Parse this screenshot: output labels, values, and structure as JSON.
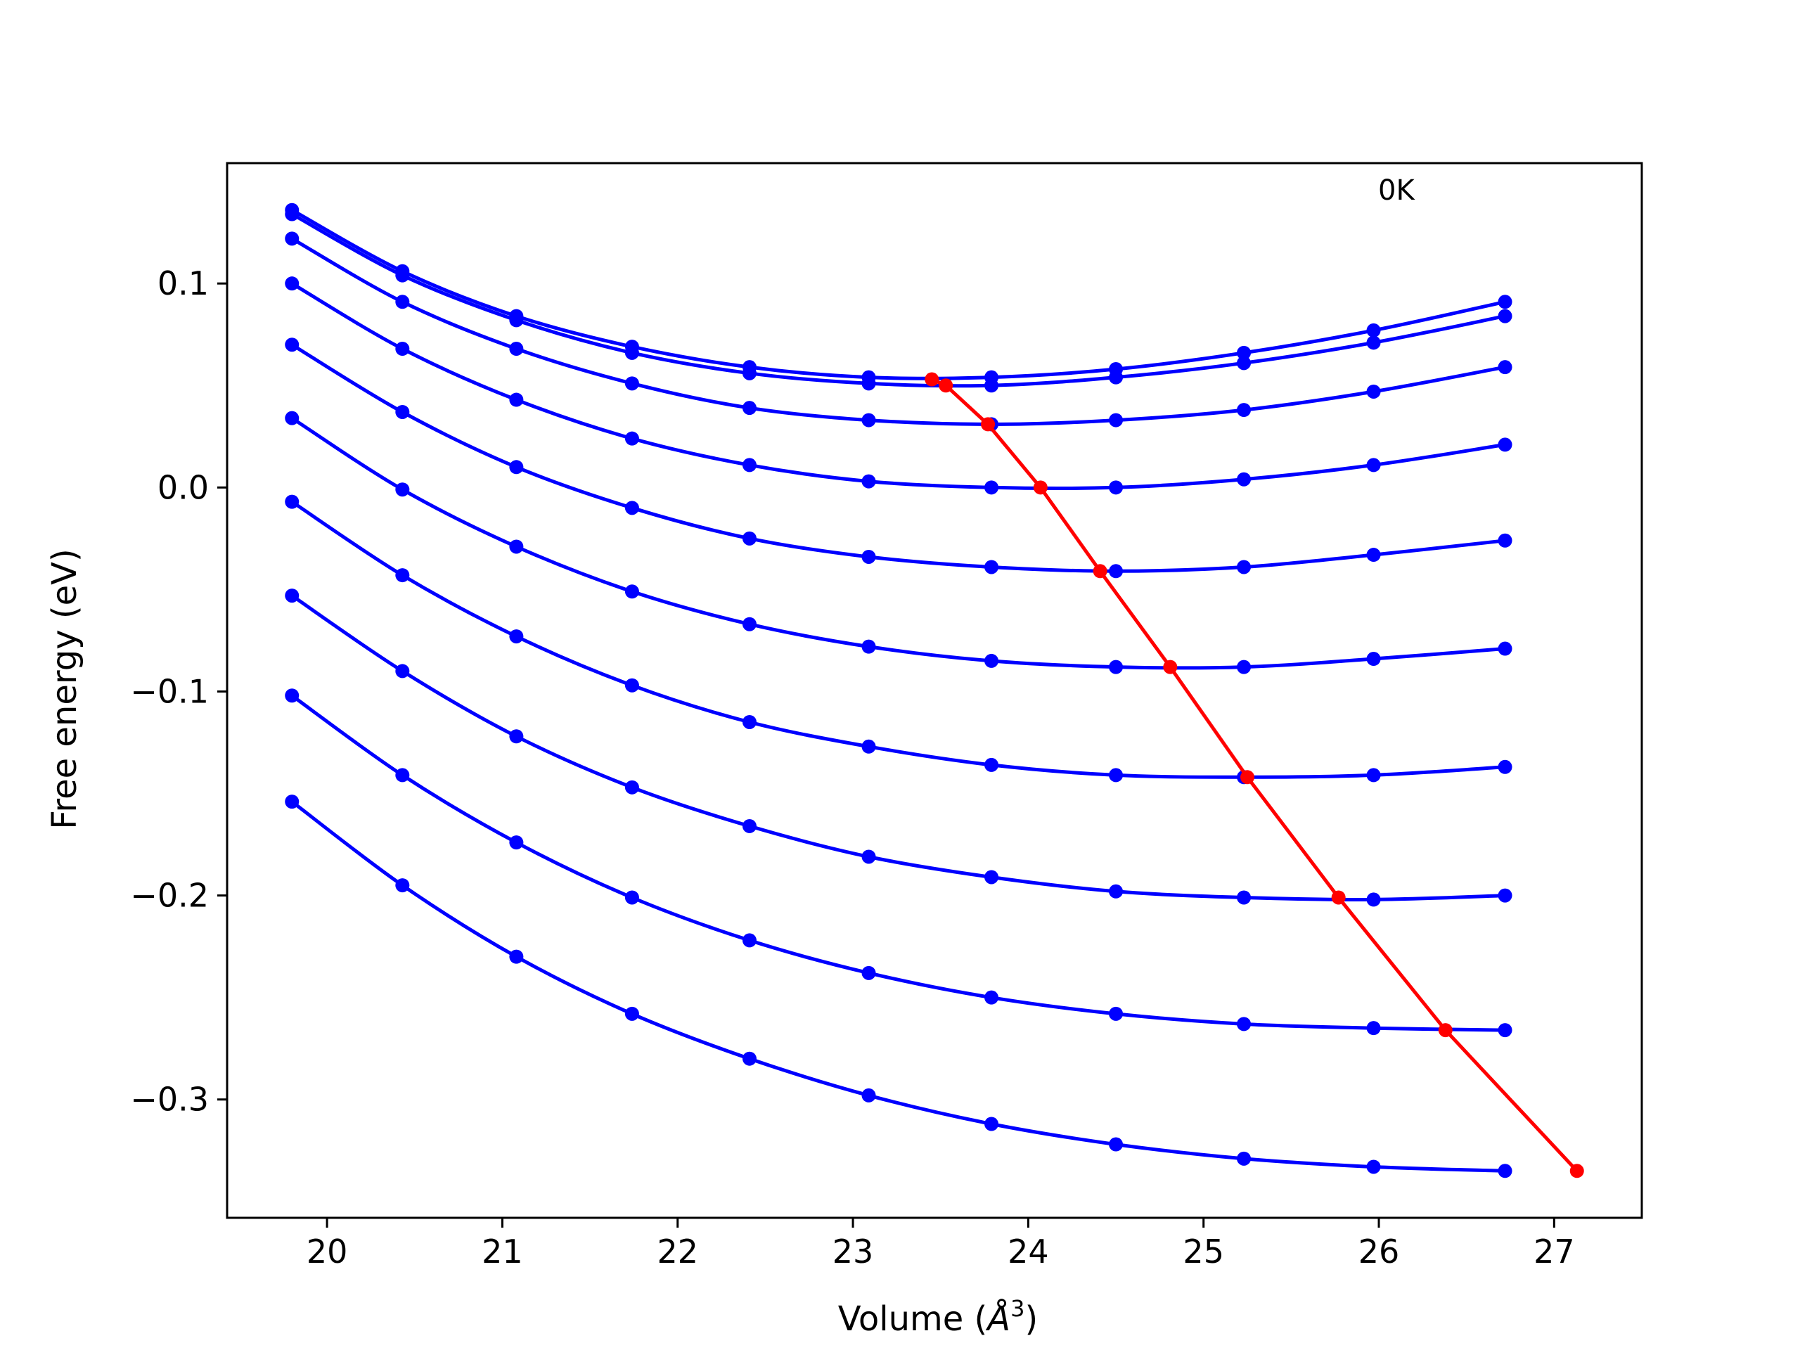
{
  "chart_data": {
    "type": "line",
    "title": "",
    "xlabel_text": "Volume (",
    "xlabel_unit": "Å",
    "xlabel_sup": "3",
    "xlabel_close": ")",
    "ylabel": "Free energy (eV)",
    "annotation": "0K",
    "xlim": [
      19.43,
      27.5
    ],
    "ylim": [
      -0.358,
      0.159
    ],
    "xticks": [
      20,
      21,
      22,
      23,
      24,
      25,
      26,
      27
    ],
    "xtick_labels": [
      "20",
      "21",
      "22",
      "23",
      "24",
      "25",
      "26",
      "27"
    ],
    "yticks": [
      -0.3,
      -0.2,
      -0.1,
      0.0,
      0.1
    ],
    "ytick_labels": [
      "−0.3",
      "−0.2",
      "−0.1",
      "0.0",
      "0.1"
    ],
    "grid": false,
    "x": [
      19.8,
      20.43,
      21.08,
      21.74,
      22.41,
      23.09,
      23.79,
      24.5,
      25.23,
      25.97,
      26.72
    ],
    "series": [
      {
        "color": "#0000ff",
        "values": [
          0.136,
          0.106,
          0.084,
          0.069,
          0.059,
          0.054,
          0.054,
          0.058,
          0.066,
          0.077,
          0.091
        ]
      },
      {
        "color": "#0000ff",
        "values": [
          0.134,
          0.104,
          0.082,
          0.066,
          0.056,
          0.051,
          0.05,
          0.054,
          0.061,
          0.071,
          0.084
        ]
      },
      {
        "color": "#0000ff",
        "values": [
          0.122,
          0.091,
          0.068,
          0.051,
          0.039,
          0.033,
          0.031,
          0.033,
          0.038,
          0.047,
          0.059
        ]
      },
      {
        "color": "#0000ff",
        "values": [
          0.1,
          0.068,
          0.043,
          0.024,
          0.011,
          0.003,
          0.0,
          0.0,
          0.004,
          0.011,
          0.021
        ]
      },
      {
        "color": "#0000ff",
        "values": [
          0.07,
          0.037,
          0.01,
          -0.01,
          -0.025,
          -0.034,
          -0.039,
          -0.041,
          -0.039,
          -0.033,
          -0.026
        ]
      },
      {
        "color": "#0000ff",
        "values": [
          0.034,
          -0.001,
          -0.029,
          -0.051,
          -0.067,
          -0.078,
          -0.085,
          -0.088,
          -0.088,
          -0.084,
          -0.079
        ]
      },
      {
        "color": "#0000ff",
        "values": [
          -0.007,
          -0.043,
          -0.073,
          -0.097,
          -0.115,
          -0.127,
          -0.136,
          -0.141,
          -0.142,
          -0.141,
          -0.137
        ]
      },
      {
        "color": "#0000ff",
        "values": [
          -0.053,
          -0.09,
          -0.122,
          -0.147,
          -0.166,
          -0.181,
          -0.191,
          -0.198,
          -0.201,
          -0.202,
          -0.2
        ]
      },
      {
        "color": "#0000ff",
        "values": [
          -0.102,
          -0.141,
          -0.174,
          -0.201,
          -0.222,
          -0.238,
          -0.25,
          -0.258,
          -0.263,
          -0.265,
          -0.266
        ]
      },
      {
        "color": "#0000ff",
        "values": [
          -0.154,
          -0.195,
          -0.23,
          -0.258,
          -0.28,
          -0.298,
          -0.312,
          -0.322,
          -0.329,
          -0.333,
          -0.335
        ]
      }
    ],
    "minima_line": {
      "color": "#ff0000",
      "x": [
        23.45,
        23.53,
        23.77,
        24.07,
        24.41,
        24.81,
        25.25,
        25.77,
        26.38,
        27.13
      ],
      "y": [
        0.053,
        0.05,
        0.031,
        0.0,
        -0.041,
        -0.088,
        -0.142,
        -0.201,
        -0.266,
        -0.335
      ]
    }
  }
}
